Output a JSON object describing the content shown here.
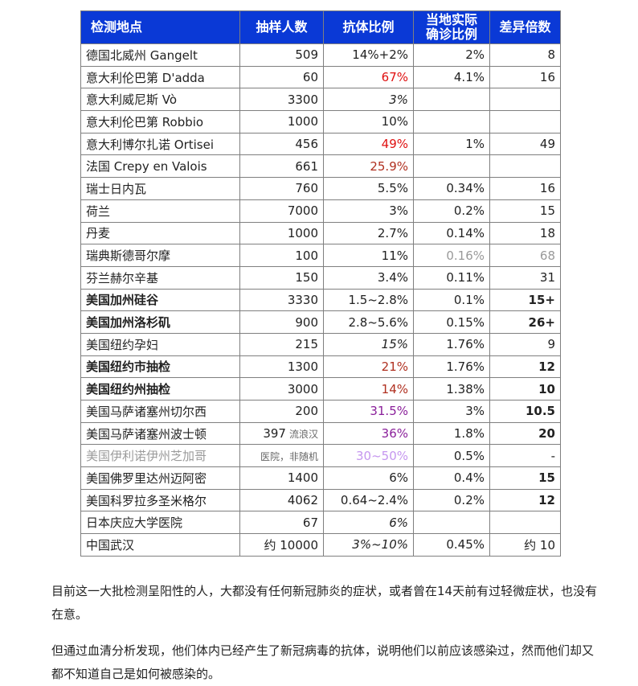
{
  "table": {
    "headers": [
      "检测地点",
      "抽样人数",
      "抗体比例",
      "当地实际\n确诊比例",
      "差异倍数"
    ],
    "rows": [
      {
        "loc": "德国北威州 Gangelt",
        "n": "509",
        "ab": "14%+2%",
        "conf": "2%",
        "diff": "8"
      },
      {
        "loc": "意大利伦巴第 D'adda",
        "n": "60",
        "ab": "67%",
        "ab_color": "red",
        "conf": "4.1%",
        "diff": "16"
      },
      {
        "loc": "意大利威尼斯 Vò",
        "n": "3300",
        "ab": "3%",
        "ab_italic": true,
        "conf": "",
        "diff": ""
      },
      {
        "loc": "意大利伦巴第 Robbio",
        "n": "1000",
        "ab": "10%",
        "conf": "",
        "diff": ""
      },
      {
        "loc": "意大利博尔扎诺 Ortisei",
        "n": "456",
        "ab": "49%",
        "ab_color": "red",
        "conf": "1%",
        "diff": "49"
      },
      {
        "loc": "法国 Crepy en Valois",
        "n": "661",
        "ab": "25.9%",
        "ab_color": "brown",
        "conf": "",
        "diff": ""
      },
      {
        "loc": "瑞士日内瓦",
        "n": "760",
        "ab": "5.5%",
        "conf": "0.34%",
        "diff": "16"
      },
      {
        "loc": "荷兰",
        "n": "7000",
        "ab": "3%",
        "conf": "0.2%",
        "diff": "15"
      },
      {
        "loc": "丹麦",
        "n": "1000",
        "ab": "2.7%",
        "conf": "0.14%",
        "diff": "18"
      },
      {
        "loc": "瑞典斯德哥尔摩",
        "n": "100",
        "ab": "11%",
        "conf": "0.16%",
        "conf_color": "gray",
        "diff": "68",
        "diff_color": "gray"
      },
      {
        "loc": "芬兰赫尔辛基",
        "n": "150",
        "ab": "3.4%",
        "conf": "0.11%",
        "diff": "31"
      },
      {
        "loc": "美国加州硅谷",
        "loc_bold": true,
        "n": "3330",
        "ab": "1.5~2.8%",
        "conf": "0.1%",
        "diff": "15+",
        "diff_bold": true
      },
      {
        "loc": "美国加州洛杉矶",
        "loc_bold": true,
        "n": "900",
        "ab": "2.8~5.6%",
        "conf": "0.15%",
        "diff": "26+",
        "diff_bold": true
      },
      {
        "loc": "美国纽约孕妇",
        "n": "215",
        "ab": "15%",
        "ab_italic": true,
        "conf": "1.76%",
        "diff": "9"
      },
      {
        "loc": "美国纽约市抽检",
        "loc_bold": true,
        "n": "1300",
        "ab": "21%",
        "ab_color": "brown",
        "conf": "1.76%",
        "diff": "12",
        "diff_bold": true
      },
      {
        "loc": "美国纽约州抽检",
        "loc_bold": true,
        "n": "3000",
        "ab": "14%",
        "ab_color": "brown",
        "conf": "1.38%",
        "diff": "10",
        "diff_bold": true
      },
      {
        "loc": "美国马萨诸塞州切尔西",
        "n": "200",
        "ab": "31.5%",
        "ab_color": "purple",
        "conf": "3%",
        "diff": "10.5",
        "diff_bold": true
      },
      {
        "loc": "美国马萨诸塞州波士顿",
        "n": "397",
        "n_note": "流浪汉",
        "ab": "36%",
        "ab_color": "purple",
        "conf": "1.8%",
        "diff": "20",
        "diff_bold": true
      },
      {
        "loc": "美国伊利诺伊州芝加哥",
        "loc_color": "lgray",
        "n": "",
        "n_note": "医院，非随机",
        "ab": "30~50%",
        "ab_color": "lilac",
        "conf": "0.5%",
        "diff": "-"
      },
      {
        "loc": "美国佛罗里达州迈阿密",
        "n": "1400",
        "ab": "6%",
        "conf": "0.4%",
        "diff": "15",
        "diff_bold": true
      },
      {
        "loc": "美国科罗拉多圣米格尔",
        "n": "4062",
        "ab": "0.64~2.4%",
        "conf": "0.2%",
        "diff": "12",
        "diff_bold": true
      },
      {
        "loc": "日本庆应大学医院",
        "n": "67",
        "ab": "6%",
        "ab_italic": true,
        "conf": "",
        "diff": ""
      },
      {
        "loc": "中国武汉",
        "n": "约 10000",
        "ab": "3%~10%",
        "ab_italic": true,
        "conf": "0.45%",
        "diff": "约 10"
      }
    ]
  },
  "paragraphs": {
    "p1": "目前这一大批检测呈阳性的人，大都没有任何新冠肺炎的症状，或者曾在14天前有过轻微症状，也没有在意。",
    "p2": "但通过血清分析发现，他们体内已经产生了新冠病毒的抗体，说明他们以前应该感染过，然而他们却又都不知道自己是如何被感染的。"
  },
  "colors": {
    "header_bg": "#0a39d6",
    "red": "#e01010",
    "brown": "#b03020",
    "purple": "#8a1f9a",
    "lilac": "#c596ef",
    "gray": "#999999"
  }
}
